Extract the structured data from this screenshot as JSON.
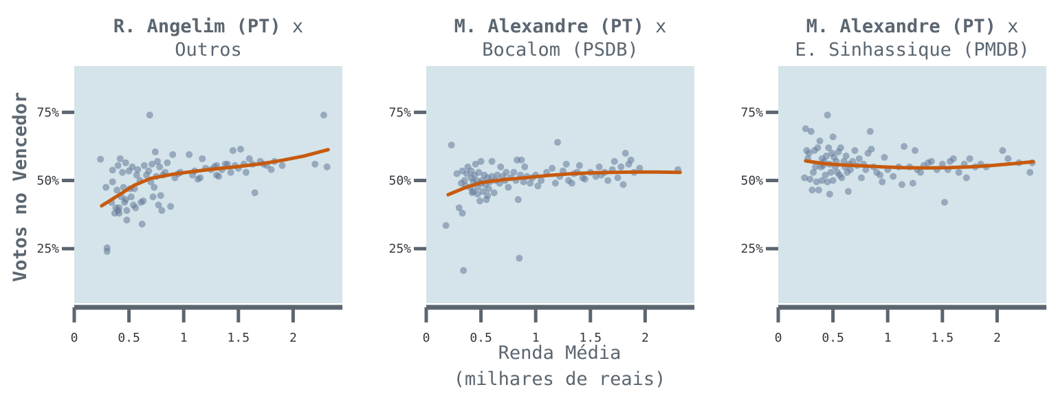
{
  "xlabel": "Renda Média",
  "xlabel_sub": "(milhares de reais)",
  "ylabel": "Votos no Vencedor",
  "colors": {
    "panel_bg": "#d4e4ea",
    "axis": "#5b6670",
    "point": "#627897",
    "smooth": "#c75a0e"
  },
  "chart_data": [
    {
      "type": "scatter",
      "title_bold": "R. Angelim (PT)",
      "title_suffix": " x",
      "subtitle": "Outros",
      "xlim": [
        0,
        2.45
      ],
      "ylim": [
        5,
        92
      ],
      "xticks": [
        0,
        0.5,
        1,
        1.5,
        2
      ],
      "xtick_labels": [
        "0",
        "0.5",
        "1",
        "1.5",
        "2"
      ],
      "yticks": [
        25,
        50,
        75
      ],
      "ytick_labels": [
        "25%",
        "50%",
        "75%"
      ],
      "grid": false,
      "points": [
        [
          0.24,
          57.8
        ],
        [
          0.29,
          47.5
        ],
        [
          0.3,
          24
        ],
        [
          0.3,
          25.3
        ],
        [
          0.34,
          42
        ],
        [
          0.35,
          53.8
        ],
        [
          0.35,
          49.5
        ],
        [
          0.37,
          38
        ],
        [
          0.38,
          40
        ],
        [
          0.39,
          46.5
        ],
        [
          0.4,
          55.5
        ],
        [
          0.4,
          39
        ],
        [
          0.41,
          38
        ],
        [
          0.41,
          40
        ],
        [
          0.42,
          58
        ],
        [
          0.43,
          44
        ],
        [
          0.44,
          53
        ],
        [
          0.45,
          47.5
        ],
        [
          0.46,
          42
        ],
        [
          0.47,
          43
        ],
        [
          0.47,
          56.5
        ],
        [
          0.48,
          39
        ],
        [
          0.48,
          35.5
        ],
        [
          0.5,
          53.5
        ],
        [
          0.51,
          47
        ],
        [
          0.52,
          44
        ],
        [
          0.53,
          55
        ],
        [
          0.54,
          41
        ],
        [
          0.55,
          47
        ],
        [
          0.56,
          40
        ],
        [
          0.57,
          52
        ],
        [
          0.58,
          54
        ],
        [
          0.6,
          50
        ],
        [
          0.61,
          42
        ],
        [
          0.62,
          34
        ],
        [
          0.63,
          42.5
        ],
        [
          0.64,
          55.5
        ],
        [
          0.66,
          52
        ],
        [
          0.68,
          53.5
        ],
        [
          0.69,
          74
        ],
        [
          0.7,
          49.5
        ],
        [
          0.71,
          56
        ],
        [
          0.72,
          44
        ],
        [
          0.73,
          47.5
        ],
        [
          0.74,
          60.5
        ],
        [
          0.75,
          51.5
        ],
        [
          0.76,
          57
        ],
        [
          0.77,
          41
        ],
        [
          0.78,
          55
        ],
        [
          0.79,
          44.5
        ],
        [
          0.8,
          39
        ],
        [
          0.81,
          52
        ],
        [
          0.83,
          53
        ],
        [
          0.85,
          56.5
        ],
        [
          0.88,
          40.5
        ],
        [
          0.9,
          59.5
        ],
        [
          0.92,
          51
        ],
        [
          0.95,
          52.5
        ],
        [
          0.97,
          53
        ],
        [
          1.05,
          59.5
        ],
        [
          1.08,
          52
        ],
        [
          1.1,
          53.5
        ],
        [
          1.13,
          50.5
        ],
        [
          1.15,
          51
        ],
        [
          1.17,
          58
        ],
        [
          1.2,
          54.5
        ],
        [
          1.25,
          54
        ],
        [
          1.28,
          55
        ],
        [
          1.3,
          52
        ],
        [
          1.3,
          55.5
        ],
        [
          1.32,
          51.5
        ],
        [
          1.35,
          54
        ],
        [
          1.38,
          56
        ],
        [
          1.4,
          56
        ],
        [
          1.43,
          53
        ],
        [
          1.45,
          61
        ],
        [
          1.47,
          55.5
        ],
        [
          1.5,
          54.5
        ],
        [
          1.52,
          61.5
        ],
        [
          1.55,
          56
        ],
        [
          1.57,
          53
        ],
        [
          1.6,
          58
        ],
        [
          1.63,
          56
        ],
        [
          1.65,
          45.5
        ],
        [
          1.7,
          57
        ],
        [
          1.73,
          56
        ],
        [
          1.76,
          55.5
        ],
        [
          1.8,
          54
        ],
        [
          1.83,
          57
        ],
        [
          1.9,
          55.5
        ],
        [
          2.2,
          56
        ],
        [
          2.28,
          74
        ],
        [
          2.31,
          55
        ]
      ],
      "smooth": [
        [
          0.25,
          40.7
        ],
        [
          0.4,
          44.5
        ],
        [
          0.55,
          48.3
        ],
        [
          0.7,
          50.8
        ],
        [
          0.9,
          52.3
        ],
        [
          1.1,
          53.4
        ],
        [
          1.3,
          54.3
        ],
        [
          1.5,
          55.1
        ],
        [
          1.7,
          56.1
        ],
        [
          1.9,
          57.4
        ],
        [
          2.1,
          59
        ],
        [
          2.32,
          61.3
        ]
      ]
    },
    {
      "type": "scatter",
      "title_bold": "M. Alexandre (PT)",
      "title_suffix": " x",
      "subtitle": "Bocalom (PSDB)",
      "xlim": [
        0,
        2.45
      ],
      "ylim": [
        5,
        92
      ],
      "xticks": [
        0,
        0.5,
        1,
        1.5,
        2
      ],
      "xtick_labels": [
        "0",
        "0.5",
        "1",
        "1.5",
        "2"
      ],
      "yticks": [
        25,
        50,
        75
      ],
      "ytick_labels": [
        "25%",
        "50%",
        "75%"
      ],
      "grid": false,
      "points": [
        [
          0.18,
          33.5
        ],
        [
          0.23,
          63
        ],
        [
          0.28,
          52.5
        ],
        [
          0.3,
          40
        ],
        [
          0.32,
          49
        ],
        [
          0.33,
          53.5
        ],
        [
          0.33,
          38
        ],
        [
          0.34,
          17
        ],
        [
          0.35,
          50
        ],
        [
          0.36,
          48
        ],
        [
          0.37,
          52.5
        ],
        [
          0.38,
          55
        ],
        [
          0.4,
          47.5
        ],
        [
          0.41,
          53.5
        ],
        [
          0.41,
          51
        ],
        [
          0.42,
          45.5
        ],
        [
          0.43,
          46
        ],
        [
          0.43,
          49.5
        ],
        [
          0.44,
          52
        ],
        [
          0.45,
          56
        ],
        [
          0.46,
          50
        ],
        [
          0.47,
          47.5
        ],
        [
          0.47,
          45
        ],
        [
          0.48,
          53
        ],
        [
          0.49,
          42.5
        ],
        [
          0.5,
          49
        ],
        [
          0.5,
          57
        ],
        [
          0.51,
          50
        ],
        [
          0.52,
          46
        ],
        [
          0.53,
          52
        ],
        [
          0.54,
          48.5
        ],
        [
          0.55,
          43
        ],
        [
          0.56,
          44.5
        ],
        [
          0.56,
          51
        ],
        [
          0.57,
          47
        ],
        [
          0.58,
          49.5
        ],
        [
          0.6,
          51.5
        ],
        [
          0.6,
          57
        ],
        [
          0.62,
          45.5
        ],
        [
          0.63,
          50
        ],
        [
          0.65,
          52
        ],
        [
          0.67,
          49
        ],
        [
          0.68,
          55
        ],
        [
          0.7,
          51.5
        ],
        [
          0.72,
          50
        ],
        [
          0.73,
          53
        ],
        [
          0.75,
          47.5
        ],
        [
          0.77,
          51
        ],
        [
          0.8,
          53
        ],
        [
          0.82,
          50
        ],
        [
          0.84,
          43
        ],
        [
          0.83,
          57.5
        ],
        [
          0.85,
          21.5
        ],
        [
          0.86,
          52
        ],
        [
          0.87,
          57.5
        ],
        [
          0.89,
          49.5
        ],
        [
          0.9,
          55
        ],
        [
          0.92,
          51.5
        ],
        [
          0.95,
          49
        ],
        [
          0.97,
          51
        ],
        [
          1,
          52
        ],
        [
          1.02,
          48
        ],
        [
          1.05,
          50
        ],
        [
          1.1,
          53
        ],
        [
          1.15,
          54.5
        ],
        [
          1.18,
          49
        ],
        [
          1.2,
          64
        ],
        [
          1.22,
          51.5
        ],
        [
          1.25,
          53.5
        ],
        [
          1.28,
          56
        ],
        [
          1.3,
          50
        ],
        [
          1.33,
          49
        ],
        [
          1.35,
          52.5
        ],
        [
          1.38,
          53
        ],
        [
          1.4,
          55.5
        ],
        [
          1.43,
          51
        ],
        [
          1.45,
          50.5
        ],
        [
          1.5,
          53
        ],
        [
          1.55,
          51.5
        ],
        [
          1.58,
          55
        ],
        [
          1.6,
          52
        ],
        [
          1.63,
          53
        ],
        [
          1.66,
          50
        ],
        [
          1.7,
          54
        ],
        [
          1.72,
          57
        ],
        [
          1.75,
          51
        ],
        [
          1.78,
          55
        ],
        [
          1.8,
          48.5
        ],
        [
          1.82,
          60
        ],
        [
          1.85,
          56
        ],
        [
          1.87,
          57.5
        ],
        [
          1.9,
          53
        ],
        [
          1.95,
          54.5
        ],
        [
          2.3,
          54
        ]
      ],
      "smooth": [
        [
          0.2,
          44.8
        ],
        [
          0.35,
          47.3
        ],
        [
          0.5,
          49.2
        ],
        [
          0.7,
          50.3
        ],
        [
          0.9,
          51
        ],
        [
          1.1,
          51.8
        ],
        [
          1.3,
          52.4
        ],
        [
          1.5,
          52.8
        ],
        [
          1.7,
          53
        ],
        [
          1.9,
          53.1
        ],
        [
          2.1,
          53.1
        ],
        [
          2.32,
          53
        ]
      ]
    },
    {
      "type": "scatter",
      "title_bold": "M. Alexandre (PT)",
      "title_suffix": " x",
      "subtitle": "E. Sinhassique (PMDB)",
      "xlim": [
        0,
        2.45
      ],
      "ylim": [
        5,
        92
      ],
      "xticks": [
        0,
        0.5,
        1,
        1.5,
        2
      ],
      "xtick_labels": [
        "0",
        "0.5",
        "1",
        "1.5",
        "2"
      ],
      "yticks": [
        25,
        50,
        75
      ],
      "ytick_labels": [
        "25%",
        "50%",
        "75%"
      ],
      "grid": false,
      "points": [
        [
          0.24,
          51
        ],
        [
          0.25,
          69
        ],
        [
          0.26,
          61
        ],
        [
          0.27,
          58
        ],
        [
          0.28,
          60
        ],
        [
          0.29,
          50.5
        ],
        [
          0.3,
          68
        ],
        [
          0.31,
          46.5
        ],
        [
          0.32,
          53
        ],
        [
          0.33,
          61
        ],
        [
          0.34,
          55
        ],
        [
          0.35,
          49.5
        ],
        [
          0.36,
          62
        ],
        [
          0.37,
          46.5
        ],
        [
          0.38,
          64.5
        ],
        [
          0.39,
          55
        ],
        [
          0.4,
          58
        ],
        [
          0.4,
          50
        ],
        [
          0.41,
          55.5
        ],
        [
          0.42,
          57
        ],
        [
          0.43,
          52
        ],
        [
          0.44,
          59
        ],
        [
          0.45,
          49.5
        ],
        [
          0.45,
          74
        ],
        [
          0.46,
          62
        ],
        [
          0.47,
          56
        ],
        [
          0.47,
          45
        ],
        [
          0.48,
          53
        ],
        [
          0.49,
          60
        ],
        [
          0.5,
          66
        ],
        [
          0.5,
          50
        ],
        [
          0.51,
          58.5
        ],
        [
          0.52,
          55
        ],
        [
          0.53,
          57
        ],
        [
          0.54,
          53
        ],
        [
          0.55,
          60.5
        ],
        [
          0.56,
          52
        ],
        [
          0.57,
          62
        ],
        [
          0.58,
          51
        ],
        [
          0.6,
          57
        ],
        [
          0.61,
          55
        ],
        [
          0.62,
          59
        ],
        [
          0.63,
          53
        ],
        [
          0.64,
          46
        ],
        [
          0.65,
          56
        ],
        [
          0.66,
          54
        ],
        [
          0.68,
          57
        ],
        [
          0.7,
          61
        ],
        [
          0.72,
          55.5
        ],
        [
          0.74,
          58
        ],
        [
          0.76,
          51
        ],
        [
          0.78,
          56
        ],
        [
          0.8,
          54
        ],
        [
          0.82,
          60
        ],
        [
          0.84,
          68
        ],
        [
          0.85,
          61.5
        ],
        [
          0.87,
          55
        ],
        [
          0.9,
          53
        ],
        [
          0.93,
          52
        ],
        [
          0.95,
          49.5
        ],
        [
          0.97,
          58.5
        ],
        [
          1,
          54
        ],
        [
          1.05,
          51.5
        ],
        [
          1.1,
          55
        ],
        [
          1.13,
          48.5
        ],
        [
          1.15,
          62.5
        ],
        [
          1.2,
          55
        ],
        [
          1.23,
          49
        ],
        [
          1.25,
          61
        ],
        [
          1.27,
          54
        ],
        [
          1.3,
          53
        ],
        [
          1.33,
          55.5
        ],
        [
          1.37,
          56.5
        ],
        [
          1.4,
          57
        ],
        [
          1.45,
          54
        ],
        [
          1.5,
          56
        ],
        [
          1.52,
          42
        ],
        [
          1.55,
          54
        ],
        [
          1.57,
          57
        ],
        [
          1.6,
          58
        ],
        [
          1.65,
          53
        ],
        [
          1.7,
          56
        ],
        [
          1.72,
          51
        ],
        [
          1.75,
          58
        ],
        [
          1.8,
          55
        ],
        [
          1.85,
          56
        ],
        [
          1.9,
          55
        ],
        [
          2.05,
          61
        ],
        [
          2.1,
          58
        ],
        [
          2.2,
          56.5
        ],
        [
          2.3,
          53
        ],
        [
          2.32,
          56.5
        ]
      ],
      "smooth": [
        [
          0.25,
          57.2
        ],
        [
          0.4,
          56.3
        ],
        [
          0.55,
          55.8
        ],
        [
          0.75,
          55.4
        ],
        [
          0.95,
          55
        ],
        [
          1.15,
          54.7
        ],
        [
          1.35,
          54.6
        ],
        [
          1.55,
          54.7
        ],
        [
          1.75,
          55
        ],
        [
          1.95,
          55.5
        ],
        [
          2.15,
          56.2
        ],
        [
          2.33,
          56.9
        ]
      ]
    }
  ]
}
